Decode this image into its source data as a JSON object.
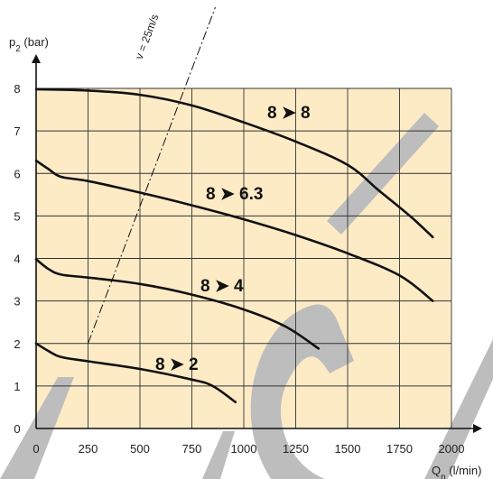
{
  "chart_data": {
    "type": "line",
    "xlabel_prefix": "Q",
    "xlabel_sub": "n",
    "xlabel_unit": " (l/min)",
    "ylabel_prefix": "p",
    "ylabel_sub": "2",
    "ylabel_unit": " (bar)",
    "xlim": [
      0,
      2000
    ],
    "ylim": [
      0,
      8
    ],
    "xticks": [
      0,
      250,
      500,
      750,
      1000,
      1250,
      1500,
      1750,
      2000
    ],
    "yticks": [
      0,
      1,
      2,
      3,
      4,
      5,
      6,
      7,
      8
    ],
    "grid": true,
    "background_color": "#fdebc6",
    "watermark_color": "#bdbdbd",
    "series": [
      {
        "name": "8 ➤ 8",
        "color": "#111111",
        "points": [
          [
            0,
            7.98
          ],
          [
            250,
            7.95
          ],
          [
            500,
            7.85
          ],
          [
            750,
            7.6
          ],
          [
            1000,
            7.2
          ],
          [
            1250,
            6.75
          ],
          [
            1500,
            6.2
          ],
          [
            1650,
            5.6
          ],
          [
            1800,
            5.0
          ],
          [
            1910,
            4.5
          ]
        ]
      },
      {
        "name": "8 ➤ 6.3",
        "color": "#111111",
        "points": [
          [
            0,
            6.3
          ],
          [
            60,
            6.1
          ],
          [
            120,
            5.92
          ],
          [
            250,
            5.82
          ],
          [
            500,
            5.55
          ],
          [
            750,
            5.25
          ],
          [
            1000,
            4.92
          ],
          [
            1250,
            4.55
          ],
          [
            1500,
            4.12
          ],
          [
            1750,
            3.6
          ],
          [
            1910,
            3.0
          ]
        ]
      },
      {
        "name": "8 ➤ 4",
        "color": "#111111",
        "points": [
          [
            0,
            3.98
          ],
          [
            60,
            3.75
          ],
          [
            120,
            3.62
          ],
          [
            250,
            3.55
          ],
          [
            500,
            3.4
          ],
          [
            750,
            3.15
          ],
          [
            1000,
            2.8
          ],
          [
            1200,
            2.4
          ],
          [
            1360,
            1.88
          ]
        ]
      },
      {
        "name": "8 ➤ 2",
        "color": "#111111",
        "points": [
          [
            0,
            2.0
          ],
          [
            60,
            1.82
          ],
          [
            120,
            1.68
          ],
          [
            250,
            1.58
          ],
          [
            500,
            1.4
          ],
          [
            750,
            1.15
          ],
          [
            850,
            1.0
          ],
          [
            960,
            0.62
          ]
        ]
      }
    ],
    "velocity_line": {
      "label": "v = 25m/s",
      "points": [
        [
          250,
          2.0
        ],
        [
          870,
          10.0
        ]
      ]
    }
  }
}
